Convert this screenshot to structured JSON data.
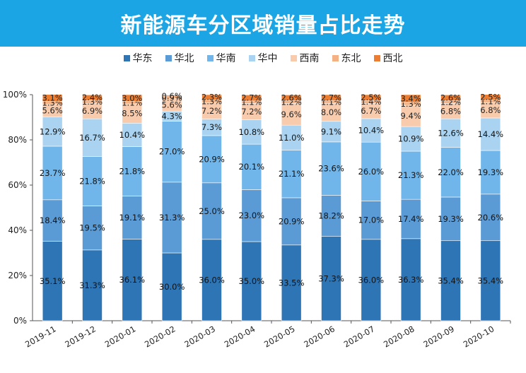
{
  "header": {
    "title": "新能源车分区域销量占比走势"
  },
  "colors": {
    "title_bg": "#1ba5e4",
    "series": [
      "#2e75b6",
      "#5b9bd5",
      "#70b6ea",
      "#a9d3f0",
      "#f8cbad",
      "#f4b183",
      "#ed7d31"
    ]
  },
  "chart_data": {
    "type": "bar",
    "stacked": true,
    "percent": true,
    "title": "新能源车分区域销量占比走势",
    "xlabel": "",
    "ylabel": "",
    "ylim": [
      0,
      100
    ],
    "yticks": [
      "0%",
      "20%",
      "40%",
      "60%",
      "80%",
      "100%"
    ],
    "legend_position": "top",
    "grid": false,
    "categories": [
      "2019-11",
      "2019-12",
      "2020-01",
      "2020-02",
      "2020-03",
      "2020-04",
      "2020-05",
      "2020-06",
      "2020-07",
      "2020-08",
      "2020-09",
      "2020-10"
    ],
    "series": [
      {
        "name": "华东",
        "values": [
          35.1,
          31.3,
          36.1,
          30.0,
          36.0,
          35.0,
          33.5,
          37.3,
          36.0,
          36.3,
          35.4,
          35.4
        ],
        "labels": [
          "35.1%",
          "31.3%",
          "36.1%",
          "30.0%",
          "36.0%",
          "35.0%",
          "33.5%",
          "37.3%",
          "36.0%",
          "36.3%",
          "35.4%",
          "35.4%"
        ]
      },
      {
        "name": "华北",
        "values": [
          18.4,
          19.5,
          19.1,
          31.3,
          25.0,
          23.0,
          20.9,
          18.2,
          17.0,
          17.4,
          19.3,
          20.6
        ],
        "labels": [
          "18.4%",
          "19.5%",
          "19.1%",
          "31.3%",
          "25.0%",
          "23.0%",
          "20.9%",
          "18.2%",
          "17.0%",
          "17.4%",
          "19.3%",
          "20.6%"
        ]
      },
      {
        "name": "华南",
        "values": [
          23.7,
          21.8,
          21.8,
          27.0,
          20.9,
          20.1,
          21.1,
          23.6,
          26.0,
          21.3,
          22.0,
          19.3
        ],
        "labels": [
          "23.7%",
          "21.8%",
          "21.8%",
          "27.0%",
          "20.9%",
          "20.1%",
          "21.1%",
          "23.6%",
          "26.0%",
          "21.3%",
          "22.0%",
          "19.3%"
        ]
      },
      {
        "name": "华中",
        "values": [
          12.9,
          16.7,
          10.4,
          4.3,
          7.3,
          10.8,
          11.0,
          9.1,
          10.4,
          10.9,
          12.6,
          14.4
        ],
        "labels": [
          "12.9%",
          "16.7%",
          "10.4%",
          "4.3%",
          "7.3%",
          "10.8%",
          "11.0%",
          "9.1%",
          "10.4%",
          "10.9%",
          "12.6%",
          "14.4%"
        ]
      },
      {
        "name": "西南",
        "values": [
          5.6,
          6.9,
          8.5,
          5.6,
          7.2,
          7.2,
          9.6,
          8.0,
          6.7,
          9.4,
          6.8,
          6.8
        ],
        "labels": [
          "5.6%",
          "6.9%",
          "8.5%",
          "5.6%",
          "7.2%",
          "7.2%",
          "9.6%",
          "8.0%",
          "6.7%",
          "9.4%",
          "6.8%",
          "6.8%"
        ]
      },
      {
        "name": "东北",
        "values": [
          1.3,
          1.3,
          1.1,
          0.9,
          1.3,
          1.1,
          1.2,
          1.1,
          1.4,
          1.3,
          1.2,
          1.1
        ],
        "labels": [
          "1.3%",
          "1.3%",
          "1.1%",
          "0.9%",
          "1.3%",
          "1.1%",
          "1.2%",
          "1.1%",
          "1.4%",
          "1.3%",
          "1.2%",
          "1.1%"
        ]
      },
      {
        "name": "西北",
        "values": [
          3.1,
          2.4,
          3.0,
          0.6,
          2.3,
          2.7,
          2.6,
          2.7,
          2.5,
          3.4,
          2.6,
          2.5
        ],
        "labels": [
          "3.1%",
          "2.4%",
          "3.0%",
          "0.6%",
          "2.3%",
          "2.7%",
          "2.6%",
          "2.7%",
          "2.5%",
          "3.4%",
          "2.6%",
          "2.5%"
        ]
      }
    ]
  }
}
